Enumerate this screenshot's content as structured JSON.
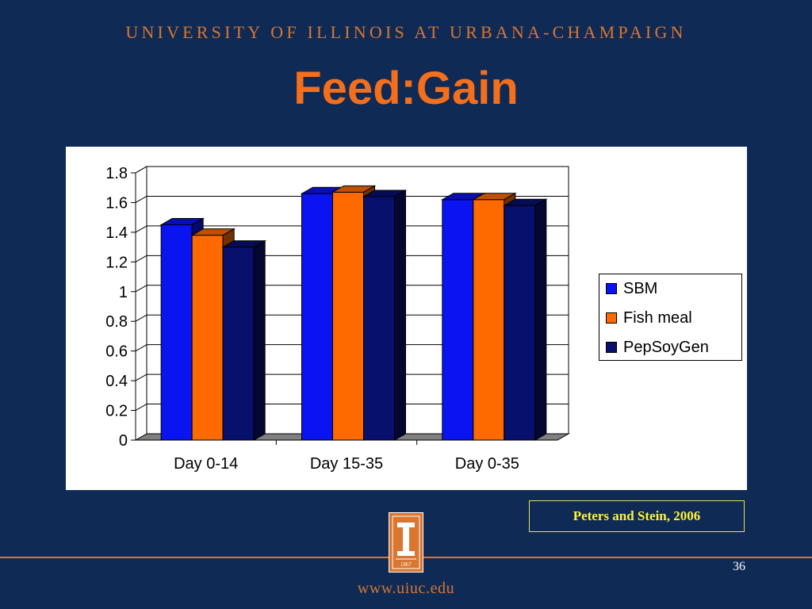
{
  "header": {
    "university": "UNIVERSITY OF ILLINOIS AT URBANA-CHAMPAIGN",
    "title": "Feed:Gain"
  },
  "chart_data": {
    "type": "bar",
    "categories": [
      "Day 0-14",
      "Day 15-35",
      "Day 0-35"
    ],
    "series": [
      {
        "name": "SBM",
        "values": [
          1.45,
          1.66,
          1.62
        ],
        "color": "#0a14f0"
      },
      {
        "name": "Fish meal",
        "values": [
          1.38,
          1.67,
          1.62
        ],
        "color": "#ff6a00"
      },
      {
        "name": "PepSoyGen",
        "values": [
          1.3,
          1.64,
          1.58
        ],
        "color": "#08106e"
      }
    ],
    "y_ticks": [
      "0",
      "0.2",
      "0.4",
      "0.6",
      "0.8",
      "1",
      "1.2",
      "1.4",
      "1.6",
      "1.8"
    ],
    "ylim": [
      0,
      1.8
    ],
    "grid": true,
    "legend_position": "right"
  },
  "citation": "Peters and Stein, 2006",
  "logo_year": "1867",
  "page_number": "36",
  "footer_url": "www.uiuc.edu"
}
